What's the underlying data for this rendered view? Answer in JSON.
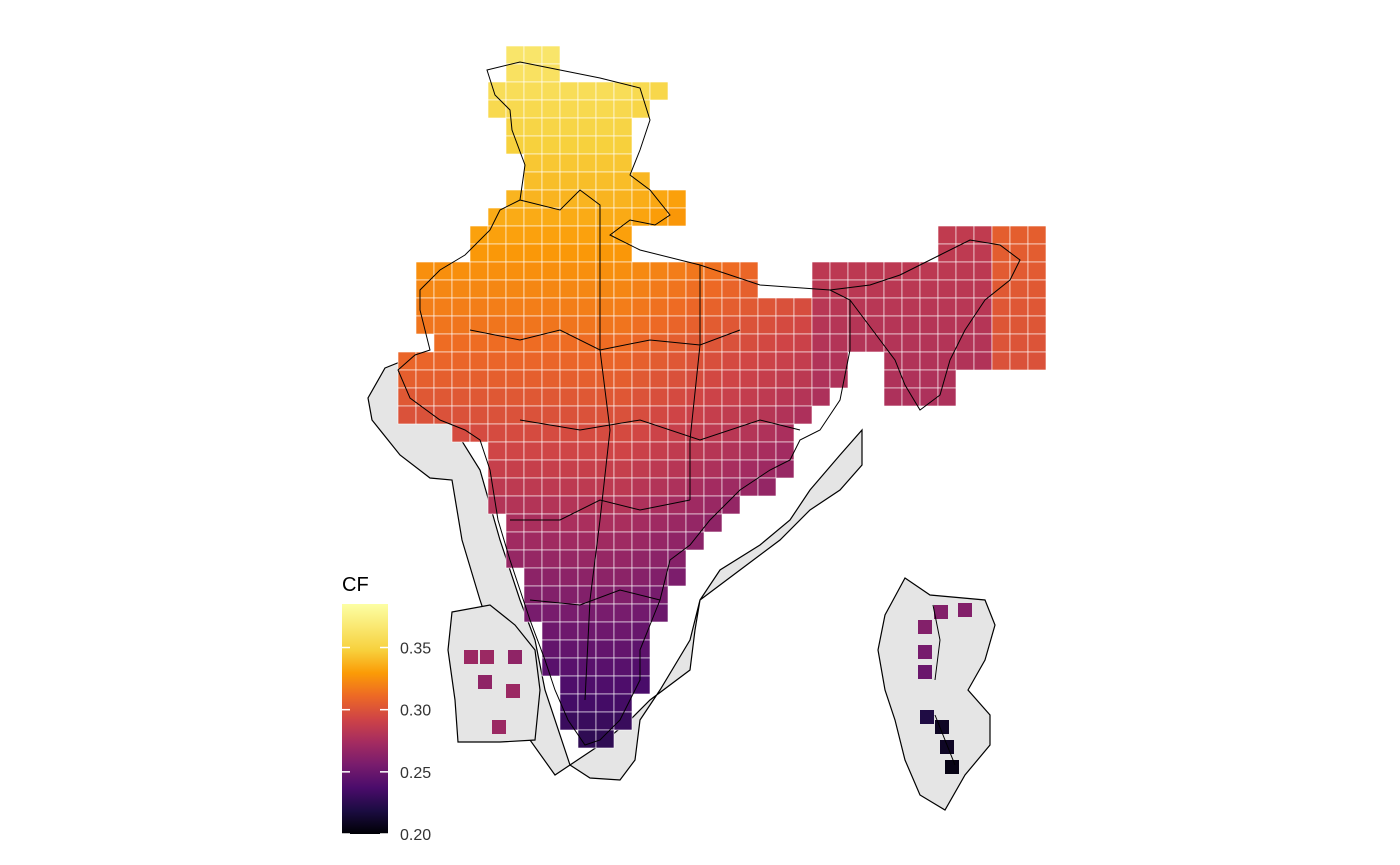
{
  "legend": {
    "title": "CF",
    "ticks": [
      "0.35",
      "0.30",
      "0.25",
      "0.20"
    ],
    "tick_values": [
      0.35,
      0.3,
      0.25,
      0.2
    ],
    "range": [
      0.2,
      0.385
    ],
    "palette": "inferno"
  },
  "colors": {
    "sea_region_fill": "#e5e5e5",
    "boundary": "#000000",
    "cell_grid_line": "#ffffff",
    "background": "#ffffff"
  }
}
